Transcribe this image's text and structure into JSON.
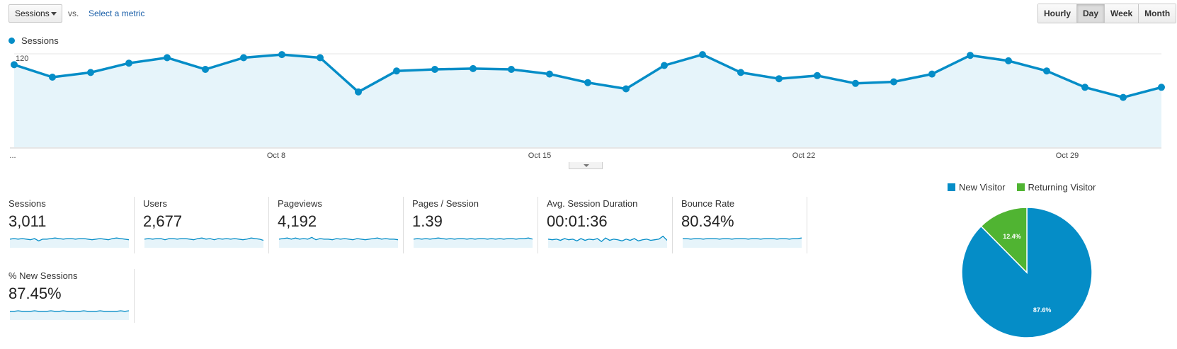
{
  "controls": {
    "metric_select": "Sessions",
    "vs": "vs.",
    "select_metric": "Select a metric",
    "time_buttons": [
      {
        "label": "Hourly",
        "active": false
      },
      {
        "label": "Day",
        "active": true
      },
      {
        "label": "Week",
        "active": false
      },
      {
        "label": "Month",
        "active": false
      }
    ]
  },
  "legend": {
    "label": "Sessions",
    "color": "#058dc7"
  },
  "chart_data": {
    "type": "area",
    "series_name": "Sessions",
    "y_ticks": [
      "120",
      "60"
    ],
    "ylim": [
      0,
      120
    ],
    "x_labels": [
      "...",
      "Oct 8",
      "Oct 15",
      "Oct 22",
      "Oct 29"
    ],
    "values": [
      106,
      90,
      96,
      108,
      115,
      100,
      115,
      119,
      115,
      71,
      98,
      100,
      101,
      100,
      94,
      83,
      75,
      105,
      119,
      96,
      88,
      92,
      82,
      84,
      94,
      118,
      111,
      98,
      77,
      64,
      77
    ],
    "line_color": "#058dc7",
    "fill_color": "#e6f4fa"
  },
  "metrics": [
    {
      "label": "Sessions",
      "value": "3,011",
      "spark": [
        5,
        6,
        5,
        6,
        5,
        4,
        6,
        2,
        5,
        5,
        6,
        7,
        6,
        5,
        6,
        6,
        5,
        6,
        6,
        5,
        4,
        5,
        6,
        5,
        4,
        6,
        7,
        6,
        5,
        4
      ]
    },
    {
      "label": "Users",
      "value": "2,677",
      "spark": [
        5,
        6,
        5,
        6,
        6,
        4,
        6,
        6,
        5,
        6,
        6,
        5,
        4,
        6,
        7,
        5,
        6,
        4,
        6,
        5,
        6,
        5,
        6,
        5,
        4,
        5,
        7,
        6,
        5,
        3
      ]
    },
    {
      "label": "Pageviews",
      "value": "4,192",
      "spark": [
        5,
        6,
        7,
        5,
        7,
        5,
        6,
        5,
        8,
        4,
        6,
        5,
        5,
        4,
        6,
        5,
        6,
        5,
        4,
        6,
        5,
        4,
        5,
        6,
        7,
        5,
        6,
        5,
        5,
        4
      ]
    },
    {
      "label": "Pages / Session",
      "value": "1.39",
      "spark": [
        5,
        6,
        5,
        6,
        5,
        6,
        7,
        6,
        5,
        6,
        5,
        6,
        6,
        5,
        6,
        5,
        6,
        6,
        5,
        6,
        5,
        6,
        5,
        6,
        6,
        5,
        6,
        6,
        7,
        5
      ]
    },
    {
      "label": "Avg. Session Duration",
      "value": "00:01:36",
      "spark": [
        5,
        4,
        5,
        3,
        6,
        4,
        5,
        2,
        6,
        3,
        5,
        4,
        6,
        1,
        7,
        3,
        5,
        4,
        2,
        5,
        3,
        6,
        2,
        4,
        5,
        3,
        4,
        5,
        10,
        3
      ]
    },
    {
      "label": "Bounce Rate",
      "value": "80.34%",
      "spark": [
        6,
        6,
        5,
        6,
        6,
        5,
        6,
        6,
        6,
        5,
        6,
        6,
        5,
        6,
        6,
        6,
        5,
        6,
        6,
        5,
        6,
        6,
        6,
        5,
        6,
        6,
        5,
        6,
        6,
        7
      ]
    },
    {
      "label": "% New Sessions",
      "value": "87.45%",
      "spark": [
        5,
        5,
        6,
        5,
        5,
        5,
        6,
        5,
        5,
        5,
        6,
        5,
        5,
        6,
        5,
        5,
        5,
        5,
        6,
        5,
        5,
        5,
        6,
        5,
        5,
        5,
        5,
        6,
        5,
        6
      ]
    }
  ],
  "pie": {
    "legend": [
      {
        "label": "New Visitor",
        "color": "#058dc7"
      },
      {
        "label": "Returning Visitor",
        "color": "#50b432"
      }
    ],
    "slices": [
      {
        "name": "New Visitor",
        "value": 87.6,
        "label": "87.6%",
        "color": "#058dc7"
      },
      {
        "name": "Returning Visitor",
        "value": 12.4,
        "label": "12.4%",
        "color": "#50b432"
      }
    ]
  }
}
